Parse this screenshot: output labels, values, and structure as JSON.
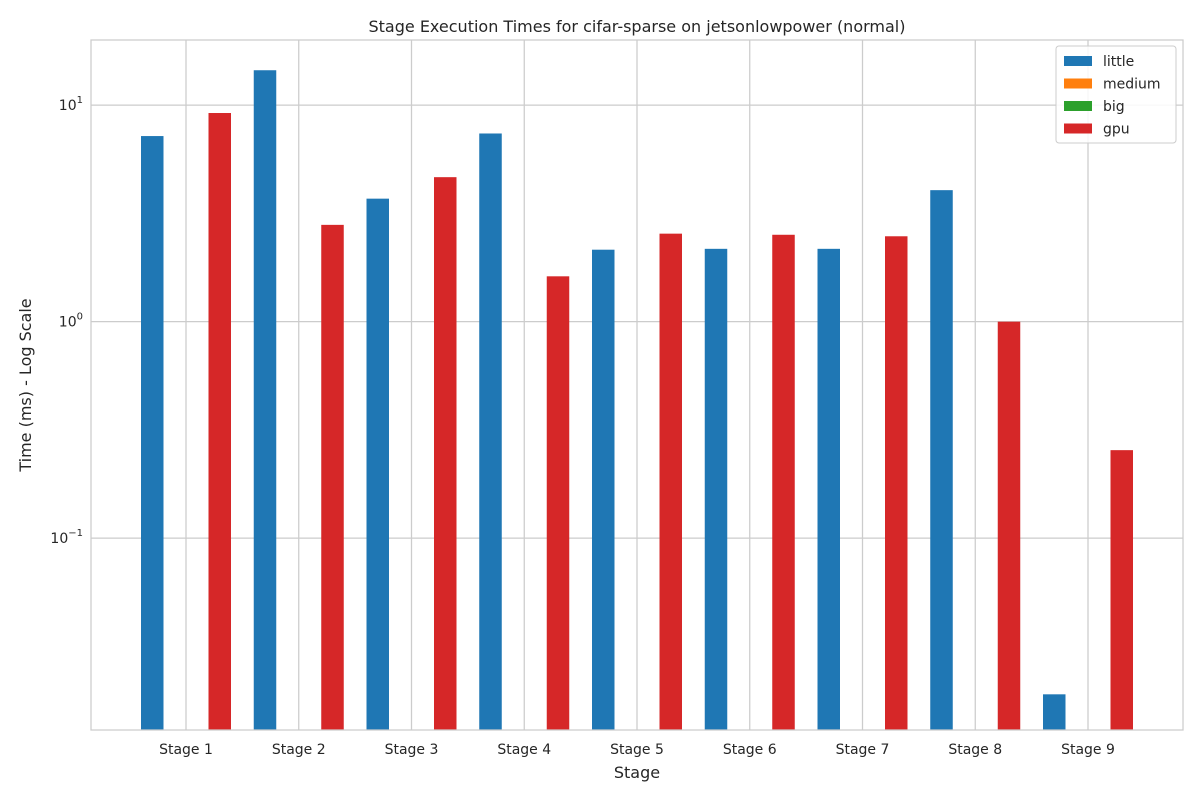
{
  "chart_data": {
    "type": "bar",
    "title": "Stage Execution Times for cifar-sparse on jetsonlowpower (normal)",
    "xlabel": "Stage",
    "ylabel": "Time (ms) - Log Scale",
    "yscale": "log",
    "ylim": [
      0.013,
      20
    ],
    "yticks": [
      {
        "value": 0.1,
        "base": "10",
        "exp": "−1"
      },
      {
        "value": 1,
        "base": "10",
        "exp": "0"
      },
      {
        "value": 10,
        "base": "10",
        "exp": "1"
      }
    ],
    "categories": [
      "Stage 1",
      "Stage 2",
      "Stage 3",
      "Stage 4",
      "Stage 5",
      "Stage 6",
      "Stage 7",
      "Stage 8",
      "Stage 9"
    ],
    "series": [
      {
        "name": "little",
        "color": "#1f77b4",
        "values": [
          7.2,
          14.5,
          3.7,
          7.4,
          2.15,
          2.17,
          2.17,
          4.05,
          0.019
        ]
      },
      {
        "name": "medium",
        "color": "#ff7f0e",
        "values": [
          null,
          null,
          null,
          null,
          null,
          null,
          null,
          null,
          null
        ]
      },
      {
        "name": "big",
        "color": "#2ca02c",
        "values": [
          null,
          null,
          null,
          null,
          null,
          null,
          null,
          null,
          null
        ]
      },
      {
        "name": "gpu",
        "color": "#d62728",
        "values": [
          9.2,
          2.8,
          4.65,
          1.62,
          2.55,
          2.52,
          2.48,
          1.0,
          0.255
        ]
      }
    ],
    "legend_position": "top-right",
    "grid": true
  }
}
